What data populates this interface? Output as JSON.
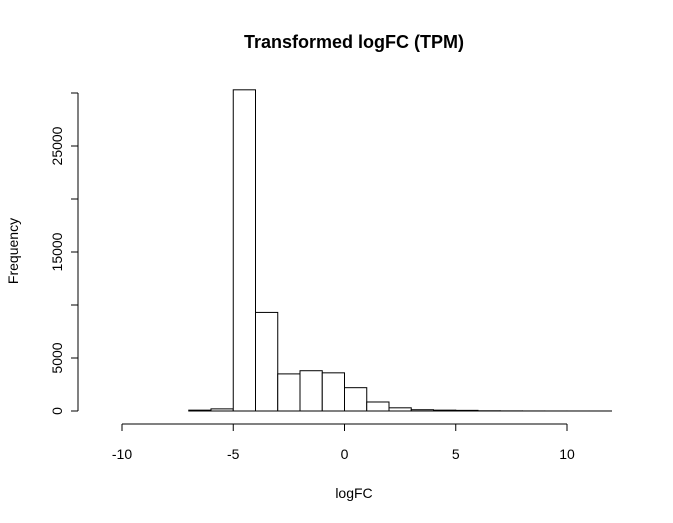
{
  "chart_data": {
    "type": "bar",
    "subtype": "histogram",
    "title": "Transformed logFC (TPM)",
    "xlabel": "logFC",
    "ylabel": "Frequency",
    "xlim": [
      -11,
      12
    ],
    "ylim": [
      0,
      30000
    ],
    "grid": false,
    "bin_width": 1,
    "bins": [
      {
        "start": -11,
        "end": -10,
        "count": 0
      },
      {
        "start": -10,
        "end": -9,
        "count": 0
      },
      {
        "start": -9,
        "end": -8,
        "count": 0
      },
      {
        "start": -8,
        "end": -7,
        "count": 0
      },
      {
        "start": -7,
        "end": -6,
        "count": 80
      },
      {
        "start": -6,
        "end": -5,
        "count": 200
      },
      {
        "start": -5,
        "end": -4,
        "count": 30300
      },
      {
        "start": -4,
        "end": -3,
        "count": 9300
      },
      {
        "start": -3,
        "end": -2,
        "count": 3500
      },
      {
        "start": -2,
        "end": -1,
        "count": 3800
      },
      {
        "start": -1,
        "end": 0,
        "count": 3600
      },
      {
        "start": 0,
        "end": 1,
        "count": 2200
      },
      {
        "start": 1,
        "end": 2,
        "count": 850
      },
      {
        "start": 2,
        "end": 3,
        "count": 300
      },
      {
        "start": 3,
        "end": 4,
        "count": 120
      },
      {
        "start": 4,
        "end": 5,
        "count": 80
      },
      {
        "start": 5,
        "end": 6,
        "count": 60
      },
      {
        "start": 6,
        "end": 7,
        "count": 20
      },
      {
        "start": 7,
        "end": 8,
        "count": 10
      },
      {
        "start": 8,
        "end": 9,
        "count": 5
      },
      {
        "start": 9,
        "end": 10,
        "count": 3
      },
      {
        "start": 10,
        "end": 11,
        "count": 2
      },
      {
        "start": 11,
        "end": 12,
        "count": 1
      }
    ],
    "x_ticks": [
      {
        "value": -10,
        "label": "-10"
      },
      {
        "value": -5,
        "label": "-5"
      },
      {
        "value": 0,
        "label": "0"
      },
      {
        "value": 5,
        "label": "5"
      },
      {
        "value": 10,
        "label": "10"
      }
    ],
    "y_ticks": [
      {
        "value": 0,
        "label": "0"
      },
      {
        "value": 5000,
        "label": "5000"
      },
      {
        "value": 15000,
        "label": "15000"
      },
      {
        "value": 25000,
        "label": "25000"
      }
    ],
    "y_minor_ticks": [
      10000,
      20000,
      30000
    ],
    "colors": {
      "bar_fill": "#ffffff",
      "bar_stroke": "#000000",
      "axis": "#000000",
      "background": "#ffffff"
    }
  }
}
